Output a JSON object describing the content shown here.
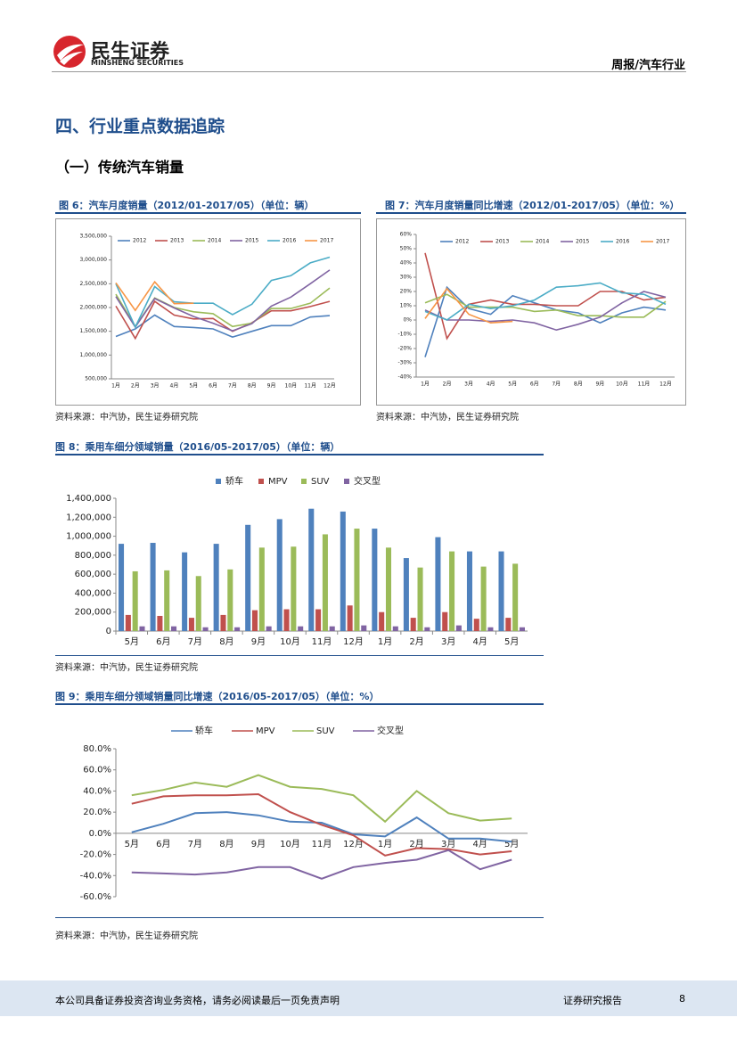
{
  "header": {
    "company": "民生证券",
    "company_en": "MINSHENG SECURITIES",
    "report_type": "周报/汽车行业"
  },
  "section_title": "四、行业重点数据追踪",
  "subsection_title": "（一）传统汽车销量",
  "chart_data": [
    {
      "type": "line",
      "title": "图 6：汽车月度销量（2012/01-2017/05）（单位：辆）",
      "source": "资料来源：中汽协，民生证券研究院",
      "categories": [
        "1月",
        "2月",
        "3月",
        "4月",
        "5月",
        "6月",
        "7月",
        "8月",
        "9月",
        "10月",
        "11月",
        "12月"
      ],
      "ylim": [
        500000,
        3500000
      ],
      "yticks": [
        {
          "value": 500000,
          "label": "500,000"
        },
        {
          "value": 1000000,
          "label": "1,000,000"
        },
        {
          "value": 1500000,
          "label": "1,500,000"
        },
        {
          "value": 2000000,
          "label": "2,000,000"
        },
        {
          "value": 2500000,
          "label": "2,500,000"
        },
        {
          "value": 3000000,
          "label": "3,000,000"
        },
        {
          "value": 3500000,
          "label": "3,500,000"
        }
      ],
      "series": [
        {
          "name": "2012",
          "color": "#4f81bd",
          "values": [
            1390000,
            1550000,
            1840000,
            1600000,
            1580000,
            1550000,
            1380000,
            1500000,
            1620000,
            1620000,
            1800000,
            1830000
          ]
        },
        {
          "name": "2013",
          "color": "#c0504d",
          "values": [
            2030000,
            1350000,
            2130000,
            1840000,
            1760000,
            1770000,
            1500000,
            1680000,
            1930000,
            1930000,
            2020000,
            2130000
          ]
        },
        {
          "name": "2014",
          "color": "#9bbb59",
          "values": [
            2280000,
            1600000,
            2200000,
            2000000,
            1910000,
            1870000,
            1600000,
            1670000,
            1980000,
            1980000,
            2090000,
            2410000
          ]
        },
        {
          "name": "2015",
          "color": "#8064a2",
          "values": [
            2230000,
            1590000,
            2190000,
            1990000,
            1810000,
            1670000,
            1510000,
            1660000,
            2030000,
            2220000,
            2500000,
            2790000
          ]
        },
        {
          "name": "2016",
          "color": "#4bacc6",
          "values": [
            2500000,
            1590000,
            2440000,
            2120000,
            2090000,
            2090000,
            1850000,
            2070000,
            2570000,
            2670000,
            2940000,
            3060000
          ]
        },
        {
          "name": "2017",
          "color": "#f79646",
          "values": [
            2520000,
            1940000,
            2540000,
            2080000,
            2090000,
            null,
            null,
            null,
            null,
            null,
            null,
            null
          ]
        }
      ]
    },
    {
      "type": "line",
      "title": "图 7：汽车月度销量同比增速（2012/01-2017/05）（单位：%）",
      "source": "资料来源：中汽协，民生证券研究院",
      "categories": [
        "1月",
        "2月",
        "3月",
        "4月",
        "5月",
        "6月",
        "7月",
        "8月",
        "9月",
        "10月",
        "11月",
        "12月"
      ],
      "ylim": [
        -40,
        60
      ],
      "yticks": [
        {
          "value": -40,
          "label": "-40%"
        },
        {
          "value": -30,
          "label": "-30%"
        },
        {
          "value": -20,
          "label": "-20%"
        },
        {
          "value": -10,
          "label": "-10%"
        },
        {
          "value": 0,
          "label": "0%"
        },
        {
          "value": 10,
          "label": "10%"
        },
        {
          "value": 20,
          "label": "20%"
        },
        {
          "value": 30,
          "label": "30%"
        },
        {
          "value": 40,
          "label": "40%"
        },
        {
          "value": 50,
          "label": "50%"
        },
        {
          "value": 60,
          "label": "60%"
        }
      ],
      "series": [
        {
          "name": "2012",
          "color": "#4f81bd",
          "values": [
            -26,
            23,
            8,
            4,
            17,
            12,
            7,
            5,
            -2,
            5,
            9,
            7
          ]
        },
        {
          "name": "2013",
          "color": "#c0504d",
          "values": [
            47,
            -13,
            11,
            14,
            11,
            11,
            10,
            10,
            20,
            20,
            14,
            16
          ]
        },
        {
          "name": "2014",
          "color": "#9bbb59",
          "values": [
            12,
            18,
            9,
            9,
            9,
            6,
            7,
            3,
            3,
            2,
            2,
            13
          ]
        },
        {
          "name": "2015",
          "color": "#8064a2",
          "values": [
            7,
            0,
            0,
            -1,
            0,
            -2,
            -7,
            -3,
            2,
            12,
            20,
            16
          ]
        },
        {
          "name": "2016",
          "color": "#4bacc6",
          "values": [
            6,
            0,
            11,
            8,
            10,
            14,
            23,
            24,
            26,
            19,
            18,
            11
          ]
        },
        {
          "name": "2017",
          "color": "#f79646",
          "values": [
            1,
            22,
            4,
            -2,
            -1,
            null,
            null,
            null,
            null,
            null,
            null,
            null
          ]
        }
      ]
    },
    {
      "type": "bar",
      "title": "图 8：乘用车细分领域销量（2016/05-2017/05）（单位：辆）",
      "source": "资料来源：中汽协，民生证券研究院",
      "categories": [
        "5月",
        "6月",
        "7月",
        "8月",
        "9月",
        "10月",
        "11月",
        "12月",
        "1月",
        "2月",
        "3月",
        "4月",
        "5月"
      ],
      "ylim": [
        0,
        1400000
      ],
      "yticks": [
        0,
        {
          "value": 200000,
          "label": "200,000"
        },
        {
          "value": 400000,
          "label": "400,000"
        },
        {
          "value": 600000,
          "label": "600,000"
        },
        {
          "value": 800000,
          "label": "800,000"
        },
        {
          "value": 1000000,
          "label": "1,000,000"
        },
        {
          "value": 1200000,
          "label": "1,200,000"
        },
        {
          "value": 1400000,
          "label": "1,400,000"
        }
      ],
      "series": [
        {
          "name": "轿车",
          "color": "#4f81bd",
          "values": [
            920000,
            930000,
            830000,
            920000,
            1120000,
            1180000,
            1290000,
            1260000,
            1080000,
            770000,
            990000,
            840000,
            840000
          ]
        },
        {
          "name": "MPV",
          "color": "#c0504d",
          "values": [
            170000,
            160000,
            140000,
            170000,
            220000,
            230000,
            230000,
            270000,
            200000,
            140000,
            200000,
            130000,
            140000
          ]
        },
        {
          "name": "SUV",
          "color": "#9bbb59",
          "values": [
            630000,
            640000,
            580000,
            650000,
            880000,
            890000,
            1020000,
            1080000,
            880000,
            670000,
            840000,
            680000,
            710000
          ]
        },
        {
          "name": "交叉型",
          "color": "#8064a2",
          "values": [
            50000,
            50000,
            40000,
            40000,
            50000,
            50000,
            50000,
            60000,
            50000,
            40000,
            60000,
            40000,
            40000
          ]
        }
      ]
    },
    {
      "type": "line",
      "title": "图 9：乘用车细分领域销量同比增速（2016/05-2017/05）（单位：%）",
      "source": "资料来源：中汽协，民生证券研究院",
      "categories": [
        "5月",
        "6月",
        "7月",
        "8月",
        "9月",
        "10月",
        "11月",
        "12月",
        "1月",
        "2月",
        "3月",
        "4月",
        "5月"
      ],
      "ylim": [
        -60,
        80
      ],
      "yticks": [
        {
          "value": -60,
          "label": "-60.0%"
        },
        {
          "value": -40,
          "label": "-40.0%"
        },
        {
          "value": -20,
          "label": "-20.0%"
        },
        {
          "value": 0,
          "label": "0.0%"
        },
        {
          "value": 20,
          "label": "20.0%"
        },
        {
          "value": 40,
          "label": "40.0%"
        },
        {
          "value": 60,
          "label": "60.0%"
        },
        {
          "value": 80,
          "label": "80.0%"
        }
      ],
      "series": [
        {
          "name": "轿车",
          "color": "#4f81bd",
          "values": [
            1,
            9,
            19,
            20,
            17,
            11,
            10,
            -1,
            -3,
            15,
            -5,
            -5,
            -8
          ]
        },
        {
          "name": "MPV",
          "color": "#c0504d",
          "values": [
            28,
            35,
            36,
            36,
            37,
            20,
            8,
            -2,
            -21,
            -14,
            -15,
            -20,
            -17
          ]
        },
        {
          "name": "SUV",
          "color": "#9bbb59",
          "values": [
            36,
            41,
            48,
            44,
            55,
            44,
            42,
            36,
            11,
            40,
            19,
            12,
            14
          ]
        },
        {
          "name": "交叉型",
          "color": "#8064a2",
          "values": [
            -37,
            -38,
            -39,
            -37,
            -32,
            -32,
            -43,
            -32,
            -28,
            -25,
            -16,
            -34,
            -25
          ]
        }
      ]
    }
  ],
  "footer": {
    "disclaimer": "本公司具备证券投资咨询业务资格，请务必阅读最后一页免责声明",
    "label": "证券研究报告",
    "page": 8
  }
}
